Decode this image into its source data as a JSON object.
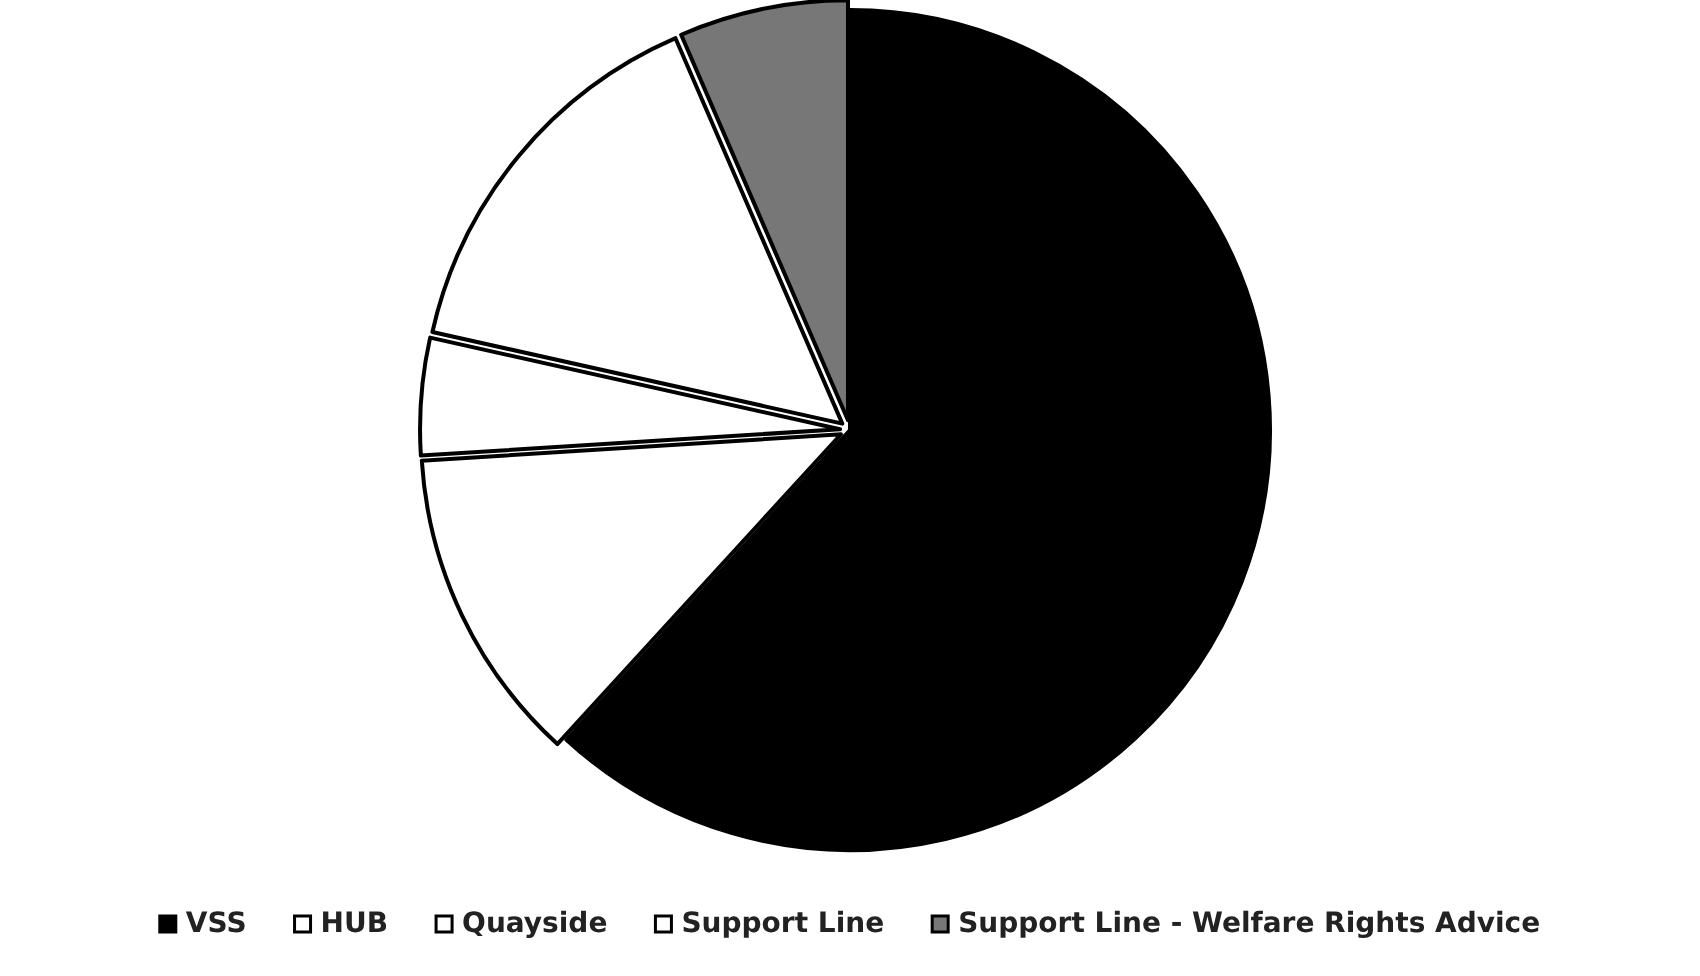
{
  "chart_data": {
    "type": "pie",
    "categories": [
      "VSS",
      "HUB",
      "Quayside",
      "Support Line",
      "Support Line - Welfare Rights Advice"
    ],
    "values": [
      61.8,
      12.2,
      4.5,
      15,
      6.5
    ],
    "colors": [
      "#000000",
      "#ffffff",
      "#ffffff",
      "#ffffff",
      "#777777"
    ],
    "legend": "bottom"
  }
}
